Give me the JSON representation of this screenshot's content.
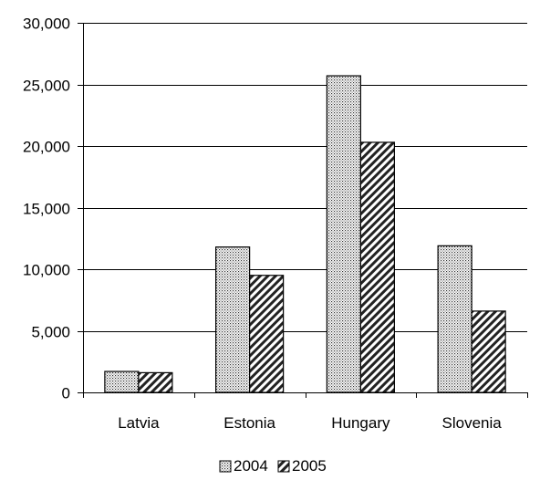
{
  "chart_data": {
    "type": "bar",
    "title": "",
    "xlabel": "",
    "ylabel": "",
    "categories": [
      "Latvia",
      "Estonia",
      "Hungary",
      "Slovenia"
    ],
    "series": [
      {
        "name": "2004",
        "values": [
          1700,
          11800,
          25700,
          11900
        ],
        "pattern": "dots"
      },
      {
        "name": "2005",
        "values": [
          1600,
          9500,
          20300,
          6600
        ],
        "pattern": "diagonal-hatch"
      }
    ],
    "ylim": [
      0,
      30000
    ],
    "yticks": [
      0,
      5000,
      10000,
      15000,
      20000,
      25000,
      30000
    ],
    "ytick_labels": [
      "0",
      "5,000",
      "10,000",
      "15,000",
      "20,000",
      "25,000",
      "30,000"
    ],
    "grid": true,
    "legend": "bottom"
  }
}
